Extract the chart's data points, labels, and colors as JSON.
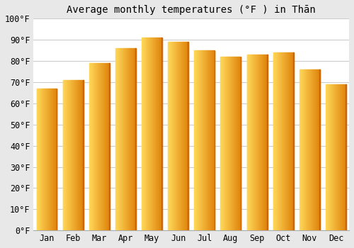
{
  "title": "Average monthly temperatures (°F ) in Thān",
  "months": [
    "Jan",
    "Feb",
    "Mar",
    "Apr",
    "May",
    "Jun",
    "Jul",
    "Aug",
    "Sep",
    "Oct",
    "Nov",
    "Dec"
  ],
  "values": [
    67,
    71,
    79,
    86,
    91,
    89,
    85,
    82,
    83,
    84,
    76,
    69
  ],
  "bar_color_left": "#FFD966",
  "bar_color_right": "#E6820E",
  "background_color": "#ffffff",
  "plot_bg_color": "#ffffff",
  "outer_bg_color": "#e8e8e8",
  "ylim": [
    0,
    100
  ],
  "ytick_step": 10,
  "title_fontsize": 10,
  "tick_fontsize": 8.5,
  "grid_color": "#cccccc",
  "bar_width": 0.78
}
